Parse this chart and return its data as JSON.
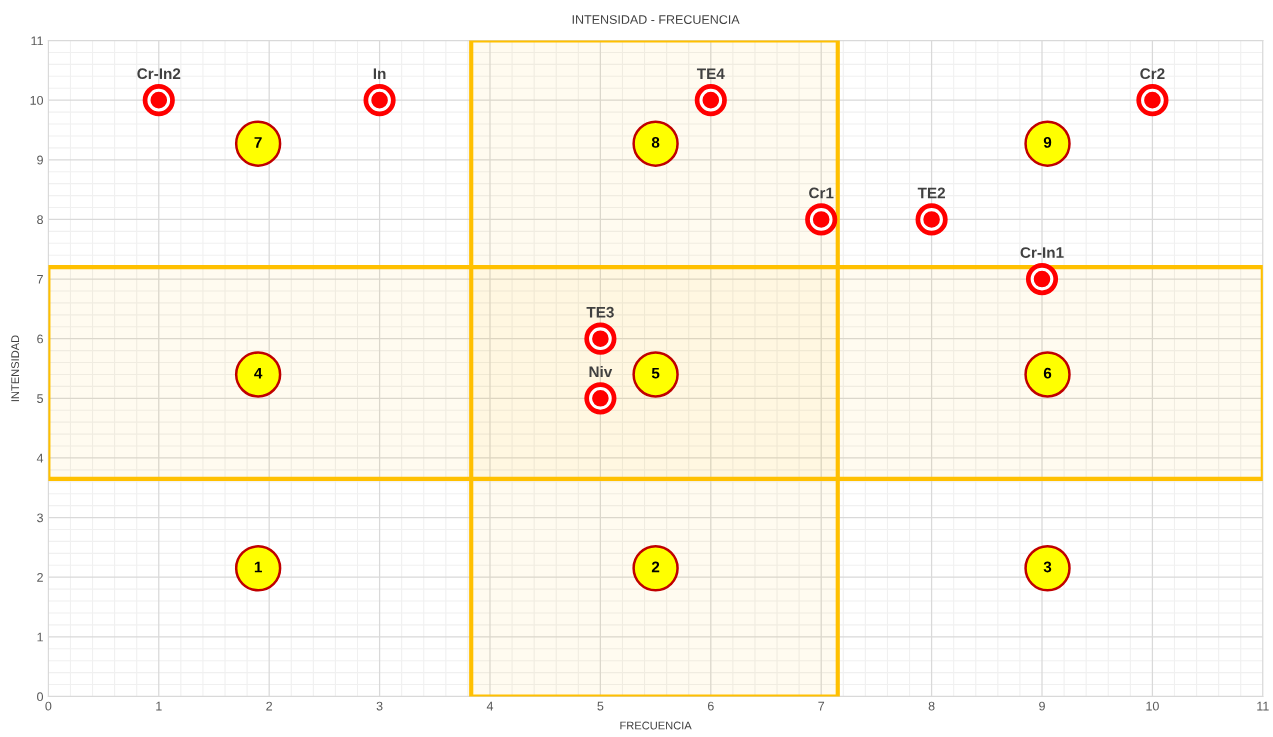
{
  "chart_data": {
    "type": "scatter",
    "title": "INTENSIDAD - FRECUENCIA",
    "xlabel": "FRECUENCIA",
    "ylabel": "INTENSIDAD",
    "xlim": [
      0,
      11
    ],
    "ylim": [
      0,
      11
    ],
    "xticks": [
      0,
      1,
      2,
      3,
      4,
      5,
      6,
      7,
      8,
      9,
      10,
      11
    ],
    "yticks": [
      0,
      1,
      2,
      3,
      4,
      5,
      6,
      7,
      8,
      9,
      10,
      11
    ],
    "grid": true,
    "legend": false,
    "marker": "circle",
    "series": [
      {
        "color": "#ff0000",
        "x": [
          1,
          3,
          6,
          10,
          7,
          8,
          9,
          5,
          5
        ],
        "values": [
          10,
          10,
          10,
          10,
          8,
          8,
          7,
          6,
          5
        ],
        "value_labels": [
          "Cr-In2",
          "In",
          "TE4",
          "Cr2",
          "Cr1",
          "TE2",
          "Cr-In1",
          "TE3",
          "Niv"
        ]
      },
      {
        "color": "#ffff00",
        "x": [
          1.9,
          5.5,
          9.05,
          1.9,
          5.5,
          9.05,
          1.9,
          5.5,
          9.05
        ],
        "values": [
          2.15,
          2.15,
          2.15,
          5.4,
          5.4,
          5.4,
          9.27,
          9.27,
          9.27
        ]
      }
    ],
    "annotations": [
      "1",
      "2",
      "3",
      "4",
      "5",
      "6",
      "7",
      "8",
      "9"
    ],
    "bands": [
      {
        "axis": "x",
        "from": 3.83,
        "to": 7.15,
        "color": "#ffc000"
      },
      {
        "axis": "y",
        "from": 3.65,
        "to": 7.2,
        "color": "#ffc000"
      }
    ]
  }
}
